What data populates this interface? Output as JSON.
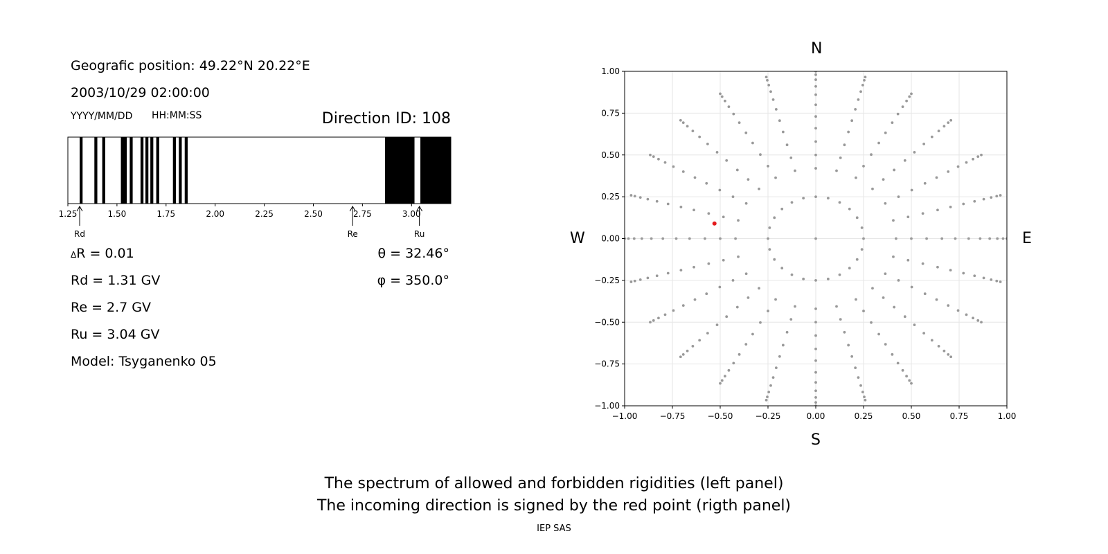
{
  "left_panel": {
    "geo_position": "Geografic position: 49.22°N 20.22°E",
    "datetime": "2003/10/29 02:00:00",
    "date_format": "YYYY/MM/DD",
    "time_format": "HH:MM:SS",
    "direction_id": "Direction ID: 108",
    "delta_r": "R = 0.01",
    "delta_symbol": "Δ",
    "rd": "Rd = 1.31 GV",
    "re": "Re = 2.7 GV",
    "ru": "Ru = 3.04 GV",
    "model": "Model: Tsyganenko 05",
    "theta": "θ = 32.46°",
    "phi": "φ = 350.0°"
  },
  "compass": {
    "north": "N",
    "south": "S",
    "west": "W",
    "east": "E"
  },
  "caption": {
    "line1": "The spectrum of allowed and forbidden rigidities (left panel)",
    "line2": "The incoming direction is signed by the red point (rigth panel)",
    "credit": "IEP SAS"
  },
  "chart_data": [
    {
      "type": "bar",
      "description_kind": "rigidity spectrum (black = forbidden, white = allowed)",
      "xlim": [
        1.25,
        3.2
      ],
      "x_ticks": [
        "1.25",
        "1.50",
        "1.75",
        "2.00",
        "2.25",
        "2.50",
        "2.75",
        "3.00"
      ],
      "x_tick_values": [
        1.25,
        1.5,
        1.75,
        2.0,
        2.25,
        2.5,
        2.75,
        3.0
      ],
      "forbidden_bands": [
        [
          1.31,
          1.325
        ],
        [
          1.385,
          1.4
        ],
        [
          1.425,
          1.44
        ],
        [
          1.52,
          1.55
        ],
        [
          1.565,
          1.58
        ],
        [
          1.62,
          1.635
        ],
        [
          1.645,
          1.66
        ],
        [
          1.67,
          1.685
        ],
        [
          1.7,
          1.715
        ],
        [
          1.785,
          1.8
        ],
        [
          1.815,
          1.83
        ],
        [
          1.845,
          1.86
        ],
        [
          2.865,
          3.015
        ],
        [
          3.045,
          3.2
        ]
      ],
      "markers": [
        {
          "label": "Rd",
          "value": 1.31
        },
        {
          "label": "Re",
          "value": 2.7
        },
        {
          "label": "Ru",
          "value": 3.04
        }
      ],
      "colors": {
        "forbidden": "#000000",
        "allowed": "#ffffff"
      }
    },
    {
      "type": "scatter",
      "xlim": [
        -1.0,
        1.0
      ],
      "ylim": [
        -1.0,
        1.0
      ],
      "x_ticks": [
        "−1.00",
        "−0.75",
        "−0.50",
        "−0.25",
        "0.00",
        "0.25",
        "0.50",
        "0.75",
        "1.00"
      ],
      "y_ticks": [
        "1.00",
        "0.75",
        "0.50",
        "0.25",
        "0.00",
        "−0.25",
        "−0.50",
        "−0.75",
        "−1.00"
      ],
      "tick_values": [
        -1.0,
        -0.75,
        -0.5,
        -0.25,
        0.0,
        0.25,
        0.5,
        0.75,
        1.0
      ],
      "grid": true,
      "grid_directions": {
        "zenith_point": [
          0,
          0
        ],
        "inner_ring": {
          "radius": 0.25,
          "count": 24
        },
        "ring_radii": [
          0.42,
          0.5,
          0.58,
          0.66,
          0.73,
          0.8,
          0.86,
          0.91,
          0.95,
          0.98,
          1.0
        ],
        "rays": 24,
        "point_color": "#999999"
      },
      "highlight": {
        "x": -0.53,
        "y": 0.09,
        "color": "#e41a1c"
      }
    }
  ]
}
